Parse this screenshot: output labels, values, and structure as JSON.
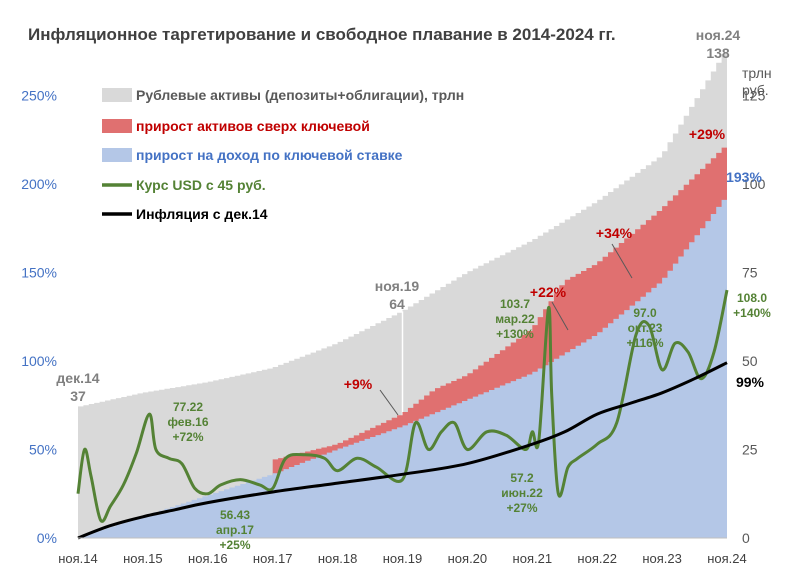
{
  "chart_data": {
    "type": "area",
    "title": "Инфляционное таргетирование и свободное плавание в 2014-2024 гг.",
    "x_ticks": [
      "ноя.14",
      "ноя.15",
      "ноя.16",
      "ноя.17",
      "ноя.18",
      "ноя.19",
      "ноя.20",
      "ноя.21",
      "ноя.22",
      "ноя.23",
      "ноя.24"
    ],
    "y_left_ticks": [
      "0%",
      "50%",
      "100%",
      "150%",
      "200%",
      "250%"
    ],
    "y_left_range": [
      0,
      2.7
    ],
    "y_right_ticks": [
      "0",
      "25",
      "50",
      "75",
      "100",
      "125"
    ],
    "y_right_unit": "трлн\nруб.",
    "y_right_unit_line1": "трлн",
    "y_right_unit_line2": "руб.",
    "y_right_range": [
      0,
      135
    ],
    "grid": false,
    "legend_position": "top-left",
    "legend": [
      {
        "label": "Рублевые активы (депозиты+облигации), трлн",
        "color": "#d9d9d9",
        "kind": "area"
      },
      {
        "label": "прирост активов сверх ключевой",
        "color": "#e07070",
        "kind": "area"
      },
      {
        "label": "прирост на доход по ключевой ставке",
        "color": "#b4c7e7",
        "kind": "area"
      },
      {
        "label": "Курс USD с 45 руб.",
        "color": "#548235",
        "kind": "line"
      },
      {
        "label": "Инфляция с дек.14",
        "color": "#000000",
        "kind": "line"
      }
    ],
    "series": [
      {
        "name": "Рублевые активы (депозиты+облигации), трлн",
        "axis": "right",
        "unit": "трлн руб.",
        "x": [
          0.0,
          1.0,
          2.0,
          3.0,
          4.0,
          5.0,
          6.0,
          7.0,
          8.0,
          9.0,
          10.0
        ],
        "values": [
          37,
          41,
          44,
          48,
          55,
          64,
          75,
          84,
          95,
          108,
          138
        ]
      },
      {
        "name": "прирост активов сверх ключевой",
        "axis": "left",
        "x": [
          3.0,
          4.0,
          5.0,
          5.5,
          6.0,
          7.0,
          7.5,
          8.0,
          9.0,
          10.0
        ],
        "values": [
          0.44,
          0.53,
          0.7,
          0.84,
          0.92,
          1.18,
          1.45,
          1.55,
          1.86,
          2.22
        ]
      },
      {
        "name": "прирост на доход по ключевой ставке",
        "axis": "left",
        "x": [
          0.0,
          1.0,
          2.0,
          3.0,
          4.0,
          5.0,
          6.0,
          7.0,
          8.0,
          9.0,
          10.0
        ],
        "values": [
          0.0,
          0.12,
          0.24,
          0.36,
          0.5,
          0.63,
          0.78,
          0.93,
          1.15,
          1.45,
          1.93
        ]
      },
      {
        "name": "Курс USD с 45 руб.",
        "axis": "left",
        "x": [
          0.0,
          0.1,
          0.2,
          0.35,
          0.5,
          0.7,
          0.9,
          1.1,
          1.2,
          1.4,
          1.6,
          1.8,
          2.0,
          2.2,
          2.5,
          2.8,
          3.0,
          3.2,
          3.5,
          3.8,
          4.0,
          4.3,
          4.6,
          5.0,
          5.2,
          5.4,
          5.6,
          5.8,
          6.0,
          6.3,
          6.6,
          6.9,
          7.0,
          7.1,
          7.25,
          7.3,
          7.4,
          7.55,
          7.7,
          8.0,
          8.3,
          8.6,
          8.8,
          9.0,
          9.2,
          9.4,
          9.6,
          9.8,
          10.0
        ],
        "values": [
          0.25,
          0.5,
          0.35,
          0.1,
          0.18,
          0.3,
          0.48,
          0.7,
          0.5,
          0.45,
          0.42,
          0.28,
          0.25,
          0.3,
          0.33,
          0.3,
          0.28,
          0.45,
          0.47,
          0.45,
          0.38,
          0.45,
          0.4,
          0.33,
          0.65,
          0.5,
          0.6,
          0.65,
          0.5,
          0.6,
          0.58,
          0.5,
          0.6,
          0.55,
          1.3,
          0.8,
          0.25,
          0.4,
          0.45,
          0.53,
          0.65,
          1.15,
          1.2,
          0.95,
          1.1,
          1.05,
          0.9,
          1.05,
          1.4
        ]
      },
      {
        "name": "Инфляция с дек.14",
        "axis": "left",
        "x": [
          0.0,
          0.5,
          1.0,
          1.5,
          2.0,
          3.0,
          4.0,
          5.0,
          6.0,
          7.0,
          7.5,
          8.0,
          8.5,
          9.0,
          9.5,
          10.0
        ],
        "values": [
          0.0,
          0.07,
          0.12,
          0.16,
          0.2,
          0.26,
          0.31,
          0.36,
          0.42,
          0.53,
          0.6,
          0.7,
          0.76,
          0.82,
          0.9,
          0.99
        ]
      }
    ],
    "annotations": [
      {
        "id": "start-label",
        "lines": [
          "дек.14",
          "37"
        ],
        "color": "#808080"
      },
      {
        "id": "mid-label",
        "lines": [
          "ноя.19",
          "64"
        ],
        "color": "#808080"
      },
      {
        "id": "end-label",
        "lines": [
          "ноя.24",
          "138"
        ],
        "color": "#808080"
      },
      {
        "id": "pct-9",
        "lines": [
          "+9%"
        ],
        "color": "#c00000"
      },
      {
        "id": "pct-22",
        "lines": [
          "+22%"
        ],
        "color": "#c00000"
      },
      {
        "id": "pct-34",
        "lines": [
          "+34%"
        ],
        "color": "#c00000"
      },
      {
        "id": "pct-29",
        "lines": [
          "+29%"
        ],
        "color": "#c00000"
      },
      {
        "id": "pct-193",
        "lines": [
          "193%"
        ],
        "color": "#4472c4"
      },
      {
        "id": "pct-99",
        "lines": [
          "99%"
        ],
        "color": "#000000"
      },
      {
        "id": "usd-feb16",
        "lines": [
          "77.22",
          "фев.16",
          "+72%"
        ],
        "color": "#548235"
      },
      {
        "id": "usd-apr17",
        "lines": [
          "56.43",
          "апр.17",
          "+25%"
        ],
        "color": "#548235"
      },
      {
        "id": "usd-mar22",
        "lines": [
          "103.7",
          "мар.22",
          "+130%"
        ],
        "color": "#548235"
      },
      {
        "id": "usd-jun22",
        "lines": [
          "57.2",
          "июн.22",
          "+27%"
        ],
        "color": "#548235"
      },
      {
        "id": "usd-oct23",
        "lines": [
          "97.0",
          "окт.23",
          "+116%"
        ],
        "color": "#548235"
      },
      {
        "id": "usd-end",
        "lines": [
          "108.0",
          "+140%"
        ],
        "color": "#548235"
      }
    ]
  }
}
